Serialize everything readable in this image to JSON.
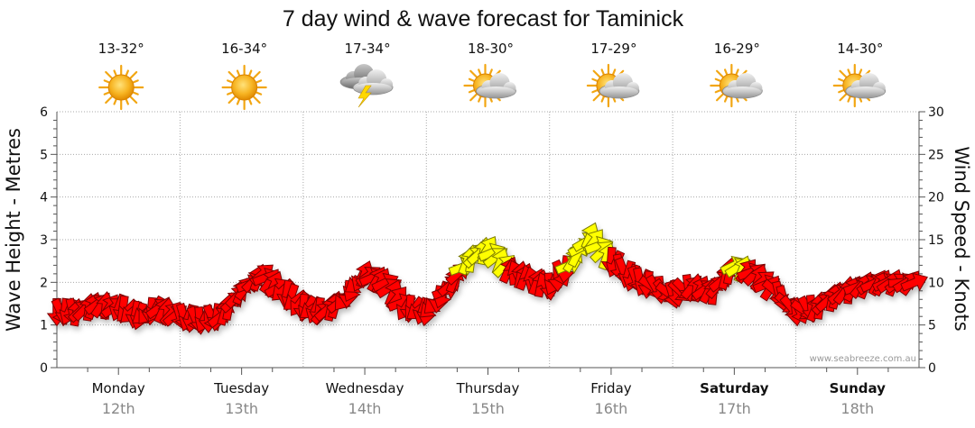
{
  "chart_data": {
    "type": "wind-wave-forecast",
    "title": "7 day wind & wave forecast for Taminick",
    "ylabel_left": "Wave Height - Metres",
    "ylabel_right": "Wind Speed - Knots",
    "ylim_left": [
      0,
      6
    ],
    "ylim_right": [
      0,
      30
    ],
    "yticks_left": [
      "0",
      "1",
      "2",
      "3",
      "4",
      "5",
      "6"
    ],
    "yticks_right": [
      "0",
      "5",
      "10",
      "15",
      "20",
      "25",
      "30"
    ],
    "credit": "www.seabreeze.com.au",
    "days": [
      {
        "name": "Monday",
        "date": "12th",
        "temp": "13-32°",
        "weather": "sunny",
        "weekend": false
      },
      {
        "name": "Tuesday",
        "date": "13th",
        "temp": "16-34°",
        "weather": "sunny",
        "weekend": false
      },
      {
        "name": "Wednesday",
        "date": "14th",
        "temp": "17-34°",
        "weather": "storm",
        "weekend": false
      },
      {
        "name": "Thursday",
        "date": "15th",
        "temp": "18-30°",
        "weather": "partly-cloudy",
        "weekend": false
      },
      {
        "name": "Friday",
        "date": "16th",
        "temp": "17-29°",
        "weather": "partly-cloudy",
        "weekend": false
      },
      {
        "name": "Saturday",
        "date": "17th",
        "temp": "16-29°",
        "weather": "partly-cloudy",
        "weekend": true
      },
      {
        "name": "Sunday",
        "date": "18th",
        "temp": "14-30°",
        "weather": "partly-cloudy",
        "weekend": true
      }
    ],
    "wind_series": {
      "name": "Wind Speed (knots)",
      "time_days": [
        0.0,
        0.16,
        0.33,
        0.5,
        0.67,
        0.83,
        1.0,
        1.16,
        1.33,
        1.5,
        1.67,
        1.83,
        2.0,
        2.16,
        2.33,
        2.5,
        2.67,
        2.83,
        3.0,
        3.16,
        3.33,
        3.5,
        3.67,
        3.83,
        4.0,
        4.16,
        4.33,
        4.5,
        4.67,
        4.83,
        5.0,
        5.16,
        5.33,
        5.5,
        5.67,
        5.83,
        6.0,
        6.16,
        6.33,
        6.5,
        6.67,
        6.83,
        7.0
      ],
      "speed_knots": [
        6.5,
        6.5,
        7.5,
        7.0,
        6.0,
        7.0,
        6.0,
        5.5,
        6.0,
        9.0,
        11.0,
        9.0,
        7.0,
        6.5,
        8.0,
        11.0,
        10.0,
        7.0,
        6.5,
        9.0,
        12.5,
        14.0,
        11.5,
        10.5,
        9.5,
        12.0,
        15.5,
        12.5,
        10.5,
        9.5,
        8.5,
        9.5,
        9.0,
        12.0,
        11.0,
        9.0,
        6.5,
        7.0,
        8.5,
        9.5,
        10.0,
        10.0,
        10.0
      ],
      "direction_deg_to": [
        270,
        60,
        60,
        240,
        240,
        60,
        270,
        270,
        60,
        45,
        45,
        240,
        240,
        60,
        240,
        45,
        45,
        240,
        240,
        45,
        60,
        45,
        90,
        90,
        270,
        45,
        45,
        270,
        270,
        300,
        300,
        60,
        60,
        45,
        45,
        300,
        300,
        60,
        60,
        45,
        45,
        30,
        270
      ]
    }
  }
}
